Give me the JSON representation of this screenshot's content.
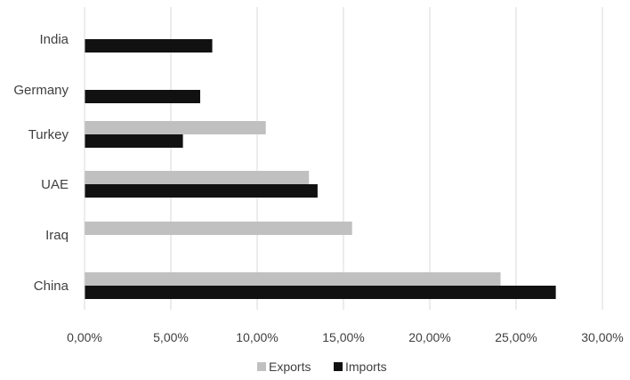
{
  "chart_data": {
    "type": "bar",
    "orientation": "horizontal",
    "categories": [
      "India",
      "Germany",
      "Turkey",
      "UAE",
      "Iraq",
      "China"
    ],
    "series": [
      {
        "name": "Exports",
        "color": "#c0c0c0",
        "values": [
          0,
          0,
          10.5,
          13.0,
          15.5,
          24.1
        ]
      },
      {
        "name": "Imports",
        "color": "#111111",
        "values": [
          7.4,
          6.7,
          5.7,
          13.5,
          0,
          27.3
        ]
      }
    ],
    "xlim": [
      0,
      30
    ],
    "x_ticks": [
      0,
      5,
      10,
      15,
      20,
      25,
      30
    ],
    "x_tick_labels": [
      "0,00%",
      "5,00%",
      "10,00%",
      "15,00%",
      "20,00%",
      "25,00%",
      "30,00%"
    ],
    "title": "",
    "xlabel": "",
    "ylabel": "",
    "grid": "vertical",
    "gridline_color": "#d9d9d9",
    "legend_placement": "bottom-center"
  }
}
